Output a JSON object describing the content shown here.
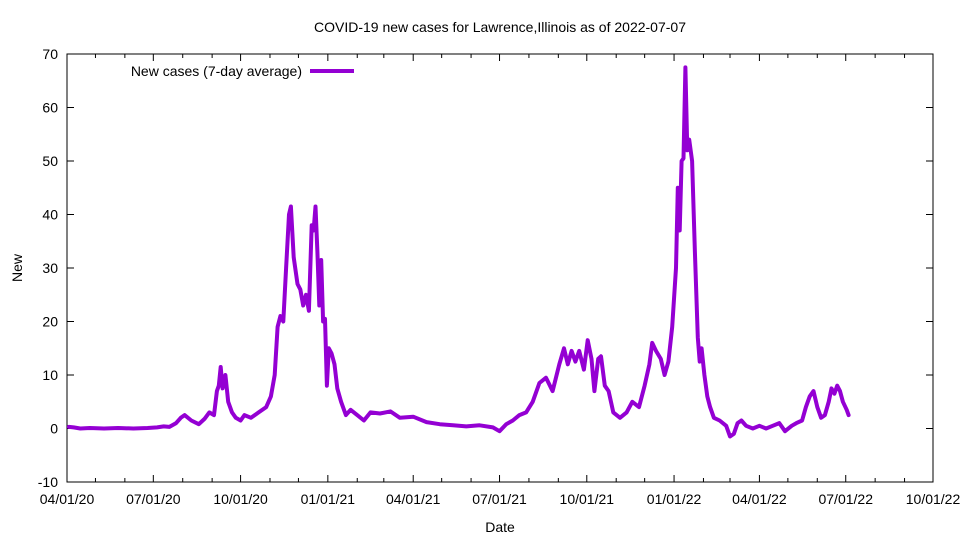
{
  "chart_data": {
    "type": "line",
    "title": "COVID-19 new cases for Lawrence,Illinois as of 2022-07-07",
    "xlabel": "Date",
    "ylabel": "New",
    "xlim": [
      "2020-04-01",
      "2022-10-01"
    ],
    "ylim": [
      -10,
      70
    ],
    "x_ticks": [
      "04/01/20",
      "07/01/20",
      "10/01/20",
      "01/01/21",
      "04/01/21",
      "07/01/21",
      "10/01/21",
      "01/01/22",
      "04/01/22",
      "07/01/22",
      "10/01/22"
    ],
    "y_ticks": [
      -10,
      0,
      10,
      20,
      30,
      40,
      50,
      60,
      70
    ],
    "grid": false,
    "legend_position": "top-left",
    "series": [
      {
        "name": "New cases (7-day average)",
        "color": "#9400d3",
        "points": [
          [
            "2020-04-03",
            0.3
          ],
          [
            "2020-04-08",
            0.2
          ],
          [
            "2020-04-15",
            0.0
          ],
          [
            "2020-04-25",
            0.1
          ],
          [
            "2020-05-10",
            0.0
          ],
          [
            "2020-05-25",
            0.1
          ],
          [
            "2020-06-10",
            0.0
          ],
          [
            "2020-06-25",
            0.1
          ],
          [
            "2020-07-05",
            0.2
          ],
          [
            "2020-07-12",
            0.4
          ],
          [
            "2020-07-18",
            0.3
          ],
          [
            "2020-07-25",
            1.0
          ],
          [
            "2020-07-30",
            2.0
          ],
          [
            "2020-08-03",
            2.5
          ],
          [
            "2020-08-10",
            1.5
          ],
          [
            "2020-08-18",
            0.8
          ],
          [
            "2020-08-24",
            1.8
          ],
          [
            "2020-08-29",
            3.0
          ],
          [
            "2020-09-03",
            2.5
          ],
          [
            "2020-09-06",
            7.0
          ],
          [
            "2020-09-08",
            8.0
          ],
          [
            "2020-09-10",
            11.5
          ],
          [
            "2020-09-12",
            7.5
          ],
          [
            "2020-09-15",
            10.0
          ],
          [
            "2020-09-18",
            5.0
          ],
          [
            "2020-09-22",
            3.0
          ],
          [
            "2020-09-26",
            2.0
          ],
          [
            "2020-10-01",
            1.5
          ],
          [
            "2020-10-05",
            2.5
          ],
          [
            "2020-10-12",
            2.0
          ],
          [
            "2020-10-20",
            3.0
          ],
          [
            "2020-10-28",
            4.0
          ],
          [
            "2020-11-02",
            6.0
          ],
          [
            "2020-11-06",
            10.0
          ],
          [
            "2020-11-09",
            19.0
          ],
          [
            "2020-11-12",
            21.0
          ],
          [
            "2020-11-15",
            20.0
          ],
          [
            "2020-11-18",
            30.0
          ],
          [
            "2020-11-21",
            40.0
          ],
          [
            "2020-11-23",
            41.5
          ],
          [
            "2020-11-26",
            32.0
          ],
          [
            "2020-11-30",
            27.0
          ],
          [
            "2020-12-03",
            26.0
          ],
          [
            "2020-12-06",
            23.0
          ],
          [
            "2020-12-09",
            25.0
          ],
          [
            "2020-12-12",
            22.0
          ],
          [
            "2020-12-15",
            38.0
          ],
          [
            "2020-12-17",
            37.0
          ],
          [
            "2020-12-19",
            41.5
          ],
          [
            "2020-12-21",
            33.0
          ],
          [
            "2020-12-23",
            23.0
          ],
          [
            "2020-12-25",
            31.5
          ],
          [
            "2020-12-27",
            20.0
          ],
          [
            "2020-12-29",
            20.5
          ],
          [
            "2020-12-31",
            8.0
          ],
          [
            "2021-01-02",
            15.0
          ],
          [
            "2021-01-05",
            14.0
          ],
          [
            "2021-01-08",
            12.0
          ],
          [
            "2021-01-11",
            7.5
          ],
          [
            "2021-01-15",
            5.0
          ],
          [
            "2021-01-20",
            2.5
          ],
          [
            "2021-01-25",
            3.5
          ],
          [
            "2021-02-01",
            2.5
          ],
          [
            "2021-02-08",
            1.5
          ],
          [
            "2021-02-15",
            3.0
          ],
          [
            "2021-02-25",
            2.8
          ],
          [
            "2021-03-08",
            3.2
          ],
          [
            "2021-03-18",
            2.0
          ],
          [
            "2021-04-01",
            2.2
          ],
          [
            "2021-04-15",
            1.2
          ],
          [
            "2021-04-29",
            0.8
          ],
          [
            "2021-05-13",
            0.6
          ],
          [
            "2021-05-27",
            0.4
          ],
          [
            "2021-06-10",
            0.6
          ],
          [
            "2021-06-24",
            0.2
          ],
          [
            "2021-07-01",
            -0.5
          ],
          [
            "2021-07-08",
            0.8
          ],
          [
            "2021-07-15",
            1.5
          ],
          [
            "2021-07-22",
            2.5
          ],
          [
            "2021-07-29",
            3.0
          ],
          [
            "2021-08-05",
            5.0
          ],
          [
            "2021-08-12",
            8.5
          ],
          [
            "2021-08-19",
            9.5
          ],
          [
            "2021-08-26",
            7.0
          ],
          [
            "2021-09-02",
            12.0
          ],
          [
            "2021-09-07",
            15.0
          ],
          [
            "2021-09-11",
            12.0
          ],
          [
            "2021-09-15",
            14.5
          ],
          [
            "2021-09-19",
            12.5
          ],
          [
            "2021-09-23",
            14.5
          ],
          [
            "2021-09-28",
            11.0
          ],
          [
            "2021-10-02",
            16.5
          ],
          [
            "2021-10-06",
            13.0
          ],
          [
            "2021-10-09",
            7.0
          ],
          [
            "2021-10-13",
            13.0
          ],
          [
            "2021-10-16",
            13.5
          ],
          [
            "2021-10-20",
            8.0
          ],
          [
            "2021-10-24",
            7.0
          ],
          [
            "2021-10-29",
            3.0
          ],
          [
            "2021-11-05",
            2.0
          ],
          [
            "2021-11-12",
            3.0
          ],
          [
            "2021-11-18",
            5.0
          ],
          [
            "2021-11-25",
            4.0
          ],
          [
            "2021-12-01",
            8.0
          ],
          [
            "2021-12-06",
            12.0
          ],
          [
            "2021-12-09",
            16.0
          ],
          [
            "2021-12-13",
            14.5
          ],
          [
            "2021-12-18",
            13.0
          ],
          [
            "2021-12-22",
            10.0
          ],
          [
            "2021-12-26",
            12.5
          ],
          [
            "2021-12-30",
            19.0
          ],
          [
            "2022-01-03",
            30.0
          ],
          [
            "2022-01-05",
            45.0
          ],
          [
            "2022-01-07",
            37.0
          ],
          [
            "2022-01-09",
            50.0
          ],
          [
            "2022-01-11",
            50.5
          ],
          [
            "2022-01-13",
            67.5
          ],
          [
            "2022-01-15",
            52.0
          ],
          [
            "2022-01-17",
            54.0
          ],
          [
            "2022-01-20",
            50.0
          ],
          [
            "2022-01-23",
            33.0
          ],
          [
            "2022-01-26",
            17.0
          ],
          [
            "2022-01-28",
            12.5
          ],
          [
            "2022-01-30",
            15.0
          ],
          [
            "2022-02-02",
            10.0
          ],
          [
            "2022-02-05",
            6.0
          ],
          [
            "2022-02-08",
            4.0
          ],
          [
            "2022-02-12",
            2.0
          ],
          [
            "2022-02-18",
            1.5
          ],
          [
            "2022-02-25",
            0.5
          ],
          [
            "2022-03-01",
            -1.5
          ],
          [
            "2022-03-05",
            -1.0
          ],
          [
            "2022-03-09",
            1.0
          ],
          [
            "2022-03-13",
            1.5
          ],
          [
            "2022-03-18",
            0.5
          ],
          [
            "2022-03-25",
            0.0
          ],
          [
            "2022-04-01",
            0.5
          ],
          [
            "2022-04-08",
            0.0
          ],
          [
            "2022-04-15",
            0.5
          ],
          [
            "2022-04-22",
            1.0
          ],
          [
            "2022-04-28",
            -0.5
          ],
          [
            "2022-05-05",
            0.5
          ],
          [
            "2022-05-10",
            1.0
          ],
          [
            "2022-05-16",
            1.5
          ],
          [
            "2022-05-20",
            4.0
          ],
          [
            "2022-05-24",
            6.0
          ],
          [
            "2022-05-28",
            7.0
          ],
          [
            "2022-06-01",
            4.0
          ],
          [
            "2022-06-05",
            2.0
          ],
          [
            "2022-06-09",
            2.5
          ],
          [
            "2022-06-13",
            5.0
          ],
          [
            "2022-06-16",
            7.5
          ],
          [
            "2022-06-19",
            6.5
          ],
          [
            "2022-06-22",
            8.0
          ],
          [
            "2022-06-25",
            7.0
          ],
          [
            "2022-06-28",
            5.0
          ],
          [
            "2022-07-02",
            3.5
          ],
          [
            "2022-07-04",
            2.5
          ]
        ]
      }
    ]
  }
}
